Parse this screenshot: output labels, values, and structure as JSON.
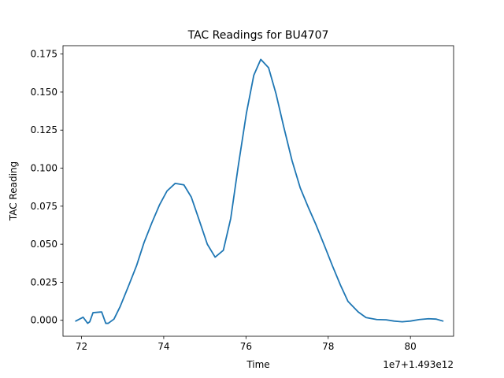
{
  "chart_data": {
    "type": "line",
    "title": "TAC Readings for BU4707",
    "xlabel": "Time",
    "ylabel": "TAC Reading",
    "offset_text": "1e7+1.493e12",
    "xlim": [
      71.55,
      81.05
    ],
    "ylim": [
      -0.0105,
      0.1805
    ],
    "x_ticks": [
      72,
      74,
      76,
      78,
      80
    ],
    "x_tick_labels": [
      "72",
      "74",
      "76",
      "78",
      "80"
    ],
    "y_ticks": [
      0.0,
      0.025,
      0.05,
      0.075,
      0.1,
      0.125,
      0.15,
      0.175
    ],
    "y_tick_labels": [
      "0.000",
      "0.025",
      "0.050",
      "0.075",
      "0.100",
      "0.125",
      "0.150",
      "0.175"
    ],
    "grid": false,
    "series_color": "#1f77b4",
    "series": [
      {
        "x": [
          71.86,
          72.04,
          72.15,
          72.2,
          72.28,
          72.49,
          72.59,
          72.65,
          72.79,
          72.94,
          73.15,
          73.34,
          73.52,
          73.71,
          73.9,
          74.08,
          74.28,
          74.49,
          74.67,
          74.86,
          75.06,
          75.25,
          75.45,
          75.63,
          75.81,
          76.01,
          76.19,
          76.36,
          76.55,
          76.73,
          76.92,
          77.12,
          77.32,
          77.52,
          77.7,
          77.91,
          78.1,
          78.3,
          78.48,
          78.73,
          78.92,
          79.18,
          79.41,
          79.6,
          79.8,
          80.0,
          80.22,
          80.44,
          80.62,
          80.79
        ],
        "y": [
          -0.0005,
          0.002,
          -0.002,
          -0.001,
          0.005,
          0.0055,
          -0.002,
          -0.002,
          0.0008,
          0.009,
          0.023,
          0.036,
          0.051,
          0.064,
          0.076,
          0.085,
          0.09,
          0.089,
          0.081,
          0.066,
          0.05,
          0.0415,
          0.046,
          0.067,
          0.101,
          0.136,
          0.161,
          0.1715,
          0.166,
          0.149,
          0.127,
          0.105,
          0.087,
          0.074,
          0.063,
          0.049,
          0.036,
          0.023,
          0.0125,
          0.0055,
          0.0018,
          0.0005,
          0.0003,
          -0.0005,
          -0.001,
          -0.0005,
          0.0005,
          0.001,
          0.0008,
          -0.0005
        ]
      }
    ]
  }
}
